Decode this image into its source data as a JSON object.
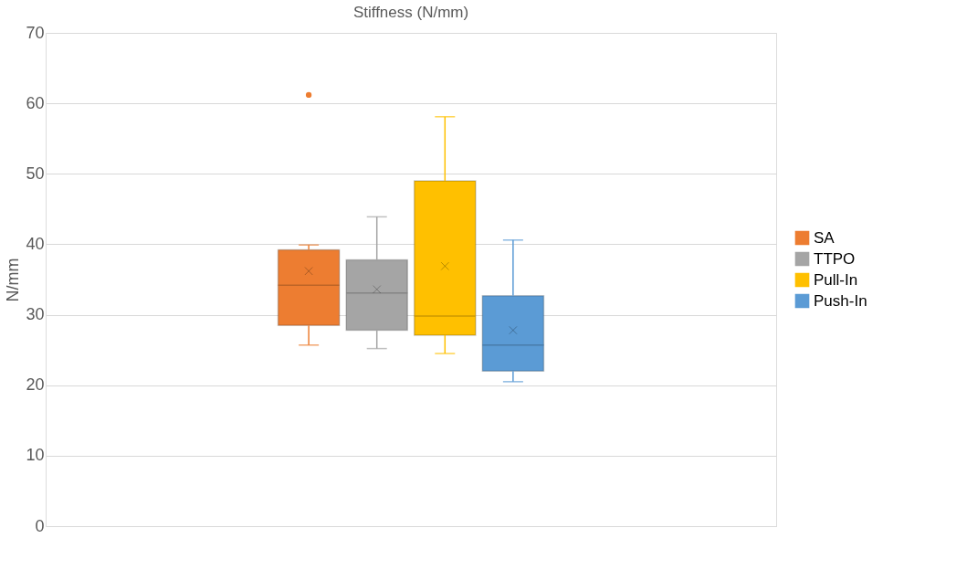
{
  "chart_data": {
    "type": "box",
    "title": "Stiffness (N/mm)",
    "ylabel": "N/mm",
    "categories": [
      null
    ],
    "series": [
      {
        "name": "SA",
        "color": "#ed7d31",
        "boxes": [
          {
            "low": 25.7,
            "q1": 28.5,
            "median": 34.2,
            "q3": 39.2,
            "high": 39.9,
            "mean": 36.2,
            "outliers": [
              61.2
            ]
          }
        ]
      },
      {
        "name": "TTPO",
        "color": "#a5a5a5",
        "boxes": [
          {
            "low": 25.2,
            "q1": 27.8,
            "median": 33.1,
            "q3": 37.8,
            "high": 43.9,
            "mean": 33.6
          }
        ]
      },
      {
        "name": "Pull-In",
        "color": "#ffc000",
        "boxes": [
          {
            "low": 24.5,
            "q1": 27.1,
            "median": 29.8,
            "q3": 49.0,
            "high": 58.1,
            "mean": 36.9
          }
        ]
      },
      {
        "name": "Push-In",
        "color": "#5b9bd5",
        "boxes": [
          {
            "low": 20.5,
            "q1": 22.0,
            "median": 25.7,
            "q3": 32.7,
            "high": 40.6,
            "mean": 27.8
          }
        ]
      }
    ],
    "ylim": [
      0,
      70
    ],
    "yticks": [
      0,
      10,
      20,
      30,
      40,
      50,
      60,
      70
    ],
    "grid": "y",
    "legend": "right",
    "tick_labels": "y"
  }
}
